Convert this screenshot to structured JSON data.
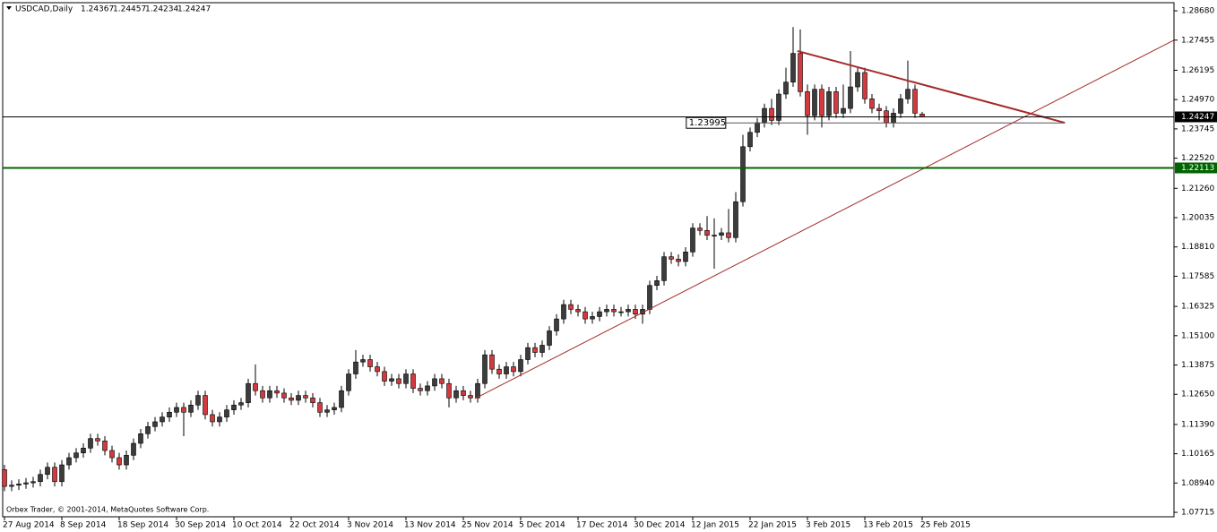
{
  "chart_data": {
    "type": "candlestick",
    "symbol": "USDCAD,Daily",
    "footer": "Orbex Trader, © 2001-2014, MetaQuotes Software Corp.",
    "up_color": "#3c3c3c",
    "down_color": "#d23a3f",
    "categories": [
      "27 Aug 2014",
      null,
      null,
      null,
      null,
      null,
      null,
      null,
      "8 Sep 2014",
      null,
      null,
      null,
      null,
      null,
      null,
      null,
      "18 Sep 2014",
      null,
      null,
      null,
      null,
      null,
      null,
      null,
      "30 Sep 2014",
      null,
      null,
      null,
      null,
      null,
      null,
      null,
      "10 Oct 2014",
      null,
      null,
      null,
      null,
      null,
      null,
      null,
      "22 Oct 2014",
      null,
      null,
      null,
      null,
      null,
      null,
      null,
      "3 Nov 2014",
      null,
      null,
      null,
      null,
      null,
      null,
      null,
      "13 Nov 2014",
      null,
      null,
      null,
      null,
      null,
      null,
      null,
      "25 Nov 2014",
      null,
      null,
      null,
      null,
      null,
      null,
      null,
      "5 Dec 2014",
      null,
      null,
      null,
      null,
      null,
      null,
      null,
      "17 Dec 2014",
      null,
      null,
      null,
      null,
      null,
      null,
      null,
      "30 Dec 2014",
      null,
      null,
      null,
      null,
      null,
      null,
      null,
      "12 Jan 2015",
      null,
      null,
      null,
      null,
      null,
      null,
      null,
      "22 Jan 2015",
      null,
      null,
      null,
      null,
      null,
      null,
      null,
      "3 Feb 2015",
      null,
      null,
      null,
      null,
      null,
      null,
      null,
      "13 Feb 2015",
      null,
      null,
      null,
      null,
      null,
      null,
      null,
      "25 Feb 2015"
    ],
    "open": [
      1.095,
      1.088,
      1.0885,
      1.089,
      1.0895,
      1.09,
      1.093,
      1.096,
      1.09,
      1.097,
      1.1,
      1.102,
      1.104,
      1.108,
      1.107,
      1.103,
      1.1,
      1.097,
      1.101,
      1.106,
      1.11,
      1.113,
      1.115,
      1.117,
      1.119,
      1.121,
      1.119,
      1.122,
      1.126,
      1.118,
      1.115,
      1.117,
      1.12,
      1.122,
      1.123,
      1.131,
      1.128,
      1.125,
      1.128,
      1.127,
      1.125,
      1.124,
      1.126,
      1.125,
      1.123,
      1.119,
      1.12,
      1.121,
      1.128,
      1.135,
      1.14,
      1.141,
      1.138,
      1.136,
      1.132,
      1.133,
      1.131,
      1.135,
      1.129,
      1.128,
      1.13,
      1.133,
      1.131,
      1.125,
      1.128,
      1.126,
      1.125,
      1.131,
      1.143,
      1.137,
      1.135,
      1.138,
      1.136,
      1.141,
      1.146,
      1.144,
      1.147,
      1.153,
      1.158,
      1.164,
      1.162,
      1.161,
      1.158,
      1.159,
      1.161,
      1.162,
      1.161,
      1.161,
      1.162,
      1.16,
      1.162,
      1.172,
      1.174,
      1.184,
      1.183,
      1.182,
      1.186,
      1.196,
      1.195,
      1.193,
      1.193,
      1.194,
      1.192,
      1.207,
      1.23,
      1.236,
      1.24,
      1.246,
      1.241,
      1.252,
      1.257,
      1.269,
      1.253,
      1.243,
      1.254,
      1.243,
      1.253,
      1.244,
      1.246,
      1.255,
      1.261,
      1.25,
      1.246,
      1.245,
      1.24,
      1.244,
      1.25,
      1.254,
      1.24367
    ],
    "high": [
      1.097,
      1.0905,
      1.091,
      1.0915,
      1.092,
      1.095,
      1.098,
      1.098,
      1.099,
      1.102,
      1.104,
      1.106,
      1.11,
      1.11,
      1.109,
      1.105,
      1.102,
      1.103,
      1.108,
      1.112,
      1.115,
      1.117,
      1.119,
      1.121,
      1.123,
      1.123,
      1.124,
      1.128,
      1.128,
      1.12,
      1.119,
      1.122,
      1.124,
      1.125,
      1.133,
      1.139,
      1.13,
      1.13,
      1.13,
      1.129,
      1.127,
      1.128,
      1.128,
      1.127,
      1.125,
      1.122,
      1.123,
      1.13,
      1.137,
      1.145,
      1.143,
      1.143,
      1.14,
      1.138,
      1.135,
      1.135,
      1.137,
      1.137,
      1.131,
      1.132,
      1.135,
      1.135,
      1.133,
      1.13,
      1.13,
      1.128,
      1.133,
      1.145,
      1.145,
      1.139,
      1.14,
      1.14,
      1.143,
      1.148,
      1.148,
      1.149,
      1.155,
      1.16,
      1.166,
      1.166,
      1.164,
      1.163,
      1.161,
      1.163,
      1.164,
      1.164,
      1.163,
      1.164,
      1.164,
      1.164,
      1.174,
      1.176,
      1.186,
      1.186,
      1.185,
      1.188,
      1.198,
      1.198,
      1.201,
      1.2,
      1.196,
      1.204,
      1.211,
      1.235,
      1.238,
      1.242,
      1.248,
      1.25,
      1.254,
      1.263,
      1.28,
      1.279,
      1.256,
      1.256,
      1.256,
      1.255,
      1.255,
      1.256,
      1.27,
      1.263,
      1.263,
      1.252,
      1.248,
      1.247,
      1.246,
      1.252,
      1.266,
      1.256,
      1.24457
    ],
    "low": [
      1.086,
      1.086,
      1.0865,
      1.087,
      1.0875,
      1.088,
      1.091,
      1.088,
      1.088,
      1.095,
      1.098,
      1.1,
      1.102,
      1.105,
      1.101,
      1.098,
      1.095,
      1.095,
      1.099,
      1.104,
      1.108,
      1.111,
      1.113,
      1.115,
      1.117,
      1.109,
      1.117,
      1.12,
      1.116,
      1.113,
      1.113,
      1.115,
      1.118,
      1.12,
      1.121,
      1.126,
      1.123,
      1.123,
      1.125,
      1.123,
      1.122,
      1.122,
      1.123,
      1.121,
      1.117,
      1.117,
      1.118,
      1.119,
      1.126,
      1.133,
      1.138,
      1.136,
      1.134,
      1.13,
      1.13,
      1.129,
      1.129,
      1.127,
      1.126,
      1.126,
      1.128,
      1.129,
      1.121,
      1.123,
      1.124,
      1.123,
      1.123,
      1.129,
      1.135,
      1.133,
      1.133,
      1.134,
      1.134,
      1.139,
      1.142,
      1.142,
      1.145,
      1.151,
      1.156,
      1.16,
      1.159,
      1.156,
      1.156,
      1.157,
      1.159,
      1.159,
      1.159,
      1.159,
      1.158,
      1.156,
      1.16,
      1.17,
      1.172,
      1.181,
      1.18,
      1.18,
      1.184,
      1.193,
      1.191,
      1.179,
      1.191,
      1.19,
      1.19,
      1.205,
      1.228,
      1.234,
      1.238,
      1.239,
      1.239,
      1.25,
      1.255,
      1.251,
      1.235,
      1.241,
      1.238,
      1.241,
      1.242,
      1.242,
      1.244,
      1.253,
      1.248,
      1.244,
      1.241,
      1.238,
      1.238,
      1.242,
      1.248,
      1.242,
      1.24234
    ],
    "close": [
      1.088,
      1.0885,
      1.089,
      1.0895,
      1.09,
      1.093,
      1.096,
      1.09,
      1.097,
      1.1,
      1.102,
      1.104,
      1.108,
      1.107,
      1.103,
      1.1,
      1.097,
      1.101,
      1.106,
      1.11,
      1.113,
      1.115,
      1.117,
      1.119,
      1.121,
      1.119,
      1.122,
      1.126,
      1.118,
      1.115,
      1.117,
      1.12,
      1.122,
      1.123,
      1.131,
      1.128,
      1.125,
      1.128,
      1.127,
      1.125,
      1.124,
      1.126,
      1.125,
      1.123,
      1.119,
      1.12,
      1.121,
      1.128,
      1.135,
      1.14,
      1.141,
      1.138,
      1.136,
      1.132,
      1.133,
      1.131,
      1.135,
      1.129,
      1.128,
      1.13,
      1.133,
      1.131,
      1.125,
      1.128,
      1.126,
      1.125,
      1.131,
      1.143,
      1.137,
      1.135,
      1.138,
      1.136,
      1.141,
      1.146,
      1.144,
      1.147,
      1.153,
      1.158,
      1.164,
      1.162,
      1.161,
      1.158,
      1.159,
      1.161,
      1.162,
      1.161,
      1.161,
      1.162,
      1.16,
      1.162,
      1.172,
      1.174,
      1.184,
      1.183,
      1.182,
      1.186,
      1.196,
      1.195,
      1.193,
      1.193,
      1.194,
      1.192,
      1.207,
      1.23,
      1.236,
      1.24,
      1.246,
      1.241,
      1.252,
      1.257,
      1.269,
      1.253,
      1.243,
      1.254,
      1.243,
      1.253,
      1.244,
      1.246,
      1.255,
      1.261,
      1.25,
      1.246,
      1.245,
      1.24,
      1.244,
      1.25,
      1.254,
      1.244,
      1.24247
    ],
    "xlim": [
      -0.25,
      163.125
    ],
    "ylim": [
      1.0753,
      1.2902
    ],
    "yticks": [
      {
        "value": 1.2868,
        "label": "1.28680"
      },
      {
        "value": 1.27455,
        "label": "1.27455"
      },
      {
        "value": 1.26195,
        "label": "1.26195"
      },
      {
        "value": 1.2497,
        "label": "1.24970"
      },
      {
        "value": 1.23745,
        "label": "1.23745"
      },
      {
        "value": 1.2252,
        "label": "1.22520"
      },
      {
        "value": 1.2126,
        "label": "1.21260"
      },
      {
        "value": 1.20035,
        "label": "1.20035"
      },
      {
        "value": 1.1881,
        "label": "1.18810"
      },
      {
        "value": 1.17585,
        "label": "1.17585"
      },
      {
        "value": 1.16325,
        "label": "1.16325"
      },
      {
        "value": 1.151,
        "label": "1.15100"
      },
      {
        "value": 1.13875,
        "label": "1.13875"
      },
      {
        "value": 1.1265,
        "label": "1.12650"
      },
      {
        "value": 1.1139,
        "label": "1.11390"
      },
      {
        "value": 1.10165,
        "label": "1.10165"
      },
      {
        "value": 1.0894,
        "label": "1.08940"
      },
      {
        "value": 1.07715,
        "label": "1.07715"
      }
    ],
    "support_line": {
      "value": 1.22113,
      "color": "#006400"
    },
    "level_line": {
      "value": 1.23995,
      "from": 100.6,
      "to": 147.9
    },
    "trend_lines": [
      {
        "color": "#a52a2a",
        "points": [
          [
            65.6,
            1.1247
          ],
          [
            163.1,
            1.2745
          ]
        ]
      },
      {
        "color": "#a52a2a",
        "points": [
          [
            110.6,
            1.27
          ],
          [
            147.9,
            1.24
          ]
        ]
      }
    ]
  }
}
